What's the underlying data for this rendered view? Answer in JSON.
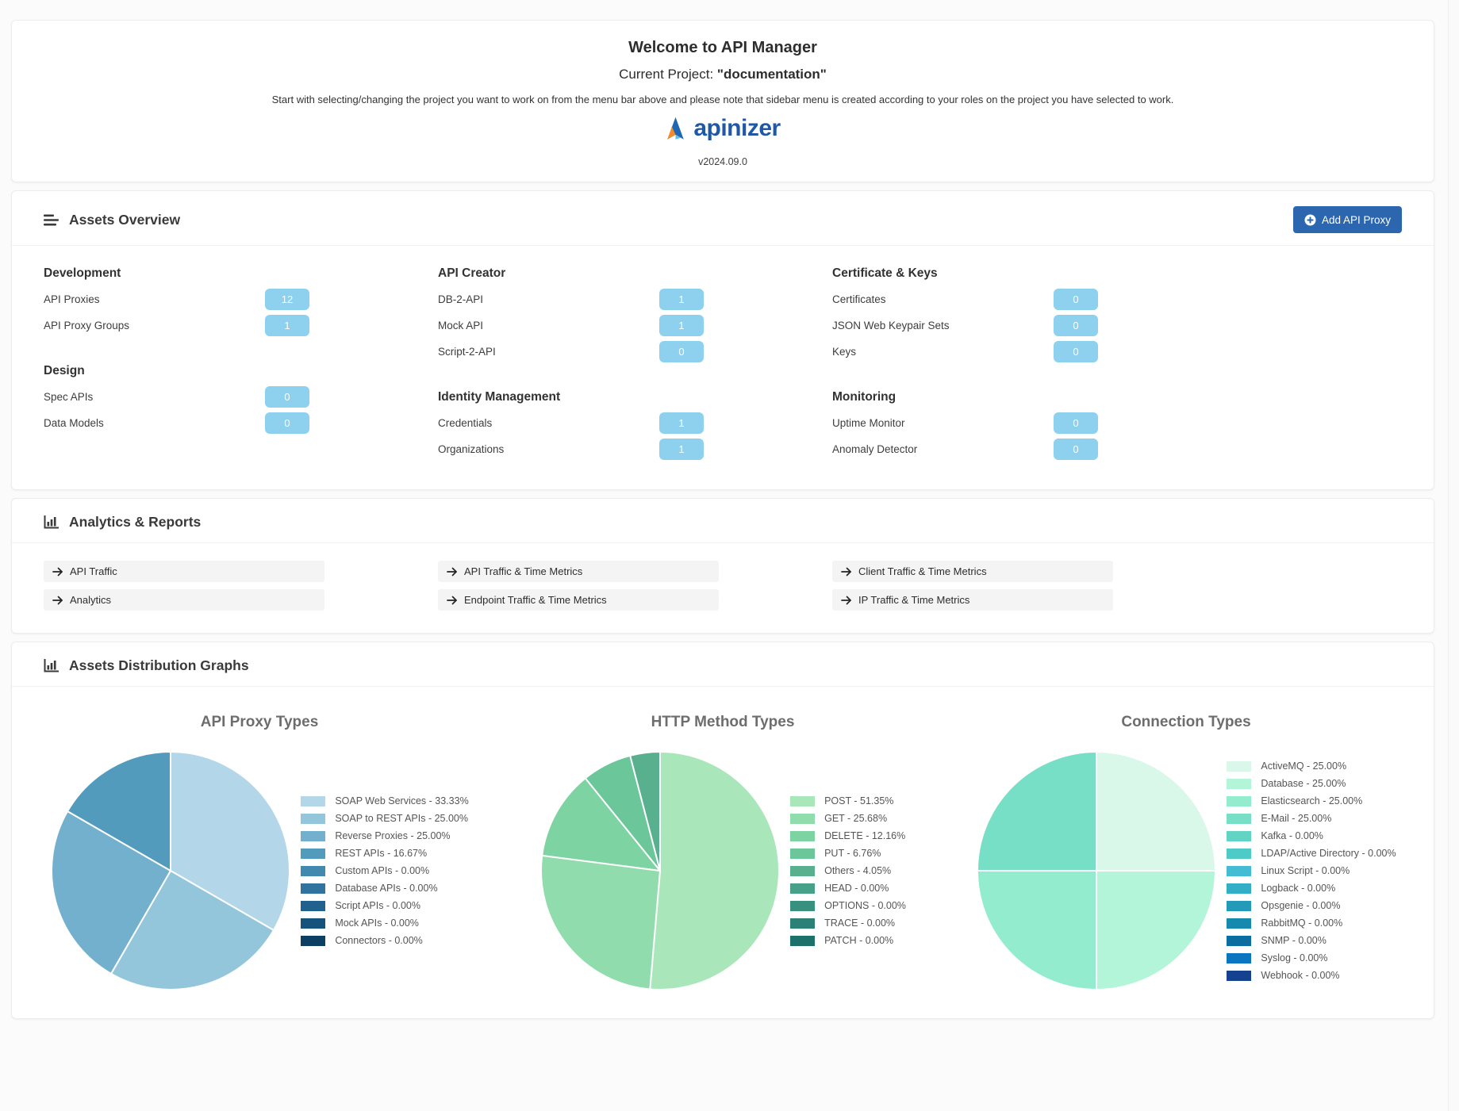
{
  "page": {
    "logo_text": "apinizer",
    "version": "v2024.09.0"
  },
  "colors": {
    "accent": "#2b66ae",
    "badge": "#8ed1ef",
    "link_bg": "#f4f4f4"
  },
  "welcome": {
    "title": "Welcome to API Manager",
    "project_label": "Current Project:",
    "project_name": "\"documentation\"",
    "description": "Start with selecting/changing the project you want to work on from the menu bar above and please note that sidebar menu is created according to your roles on the project you have selected to work."
  },
  "assets_overview": {
    "title": "Assets Overview",
    "add_button": "Add API Proxy",
    "columns": [
      {
        "groups": [
          {
            "title": "Development",
            "items": [
              {
                "label": "API Proxies",
                "count": "12"
              },
              {
                "label": "API Proxy Groups",
                "count": "1"
              }
            ]
          },
          {
            "title": "Design",
            "items": [
              {
                "label": "Spec APIs",
                "count": "0"
              },
              {
                "label": "Data Models",
                "count": "0"
              }
            ]
          }
        ]
      },
      {
        "groups": [
          {
            "title": "API Creator",
            "items": [
              {
                "label": "DB-2-API",
                "count": "1"
              },
              {
                "label": "Mock API",
                "count": "1"
              },
              {
                "label": "Script-2-API",
                "count": "0"
              }
            ]
          },
          {
            "title": "Identity Management",
            "items": [
              {
                "label": "Credentials",
                "count": "1"
              },
              {
                "label": "Organizations",
                "count": "1"
              }
            ]
          }
        ]
      },
      {
        "groups": [
          {
            "title": "Certificate & Keys",
            "items": [
              {
                "label": "Certificates",
                "count": "0"
              },
              {
                "label": "JSON Web Keypair Sets",
                "count": "0"
              },
              {
                "label": "Keys",
                "count": "0"
              }
            ]
          },
          {
            "title": "Monitoring",
            "items": [
              {
                "label": "Uptime Monitor",
                "count": "0"
              },
              {
                "label": "Anomaly Detector",
                "count": "0"
              }
            ]
          }
        ]
      }
    ]
  },
  "analytics_reports": {
    "title": "Analytics & Reports",
    "link_columns": [
      [
        "API Traffic",
        "Analytics"
      ],
      [
        "API Traffic & Time Metrics",
        "Endpoint Traffic & Time Metrics"
      ],
      [
        "Client Traffic & Time Metrics",
        "IP Traffic & Time Metrics"
      ]
    ]
  },
  "distribution": {
    "title": "Assets Distribution Graphs"
  },
  "chart_data": [
    {
      "type": "pie",
      "title": "API Proxy Types",
      "labels": [
        "SOAP Web Services",
        "SOAP to REST APIs",
        "Reverse Proxies",
        "REST APIs",
        "Custom APIs",
        "Database APIs",
        "Script APIs",
        "Mock APIs",
        "Connectors"
      ],
      "values": [
        33.33,
        25.0,
        25.0,
        16.67,
        0.0,
        0.0,
        0.0,
        0.0,
        0.0
      ],
      "colors": [
        "#b3d7e8",
        "#93c6db",
        "#73b0cd",
        "#539bbd",
        "#4189af",
        "#30739e",
        "#20618e",
        "#15527c",
        "#0d3f63"
      ],
      "legend_position": "right",
      "start_angle_deg": 0,
      "direction": "clockwise"
    },
    {
      "type": "pie",
      "title": "HTTP Method Types",
      "labels": [
        "POST",
        "GET",
        "DELETE",
        "PUT",
        "Others",
        "HEAD",
        "OPTIONS",
        "TRACE",
        "PATCH"
      ],
      "values": [
        51.35,
        25.68,
        12.16,
        6.76,
        4.05,
        0.0,
        0.0,
        0.0,
        0.0
      ],
      "colors": [
        "#a9e6ba",
        "#90dcac",
        "#7ed3a3",
        "#6bc69a",
        "#58b08f",
        "#47a189",
        "#38917f",
        "#2b8176",
        "#1d716b"
      ],
      "legend_position": "right",
      "start_angle_deg": 0,
      "direction": "clockwise"
    },
    {
      "type": "pie",
      "title": "Connection Types",
      "labels": [
        "ActiveMQ",
        "Database",
        "Elasticsearch",
        "E-Mail",
        "Kafka",
        "LDAP/Active Directory",
        "Linux Script",
        "Logback",
        "Opsgenie",
        "RabbitMQ",
        "SNMP",
        "Syslog",
        "Webhook"
      ],
      "values": [
        25.0,
        25.0,
        25.0,
        25.0,
        0.0,
        0.0,
        0.0,
        0.0,
        0.0,
        0.0,
        0.0,
        0.0,
        0.0
      ],
      "colors": [
        "#d9f8e9",
        "#b3f5d8",
        "#93eccd",
        "#77dfc6",
        "#61d4c3",
        "#4ecac7",
        "#44bcd4",
        "#33aec7",
        "#239ab8",
        "#1689ae",
        "#0c6da0",
        "#0b75c0",
        "#16418f"
      ],
      "legend_position": "right",
      "start_angle_deg": 0,
      "direction": "clockwise"
    }
  ]
}
